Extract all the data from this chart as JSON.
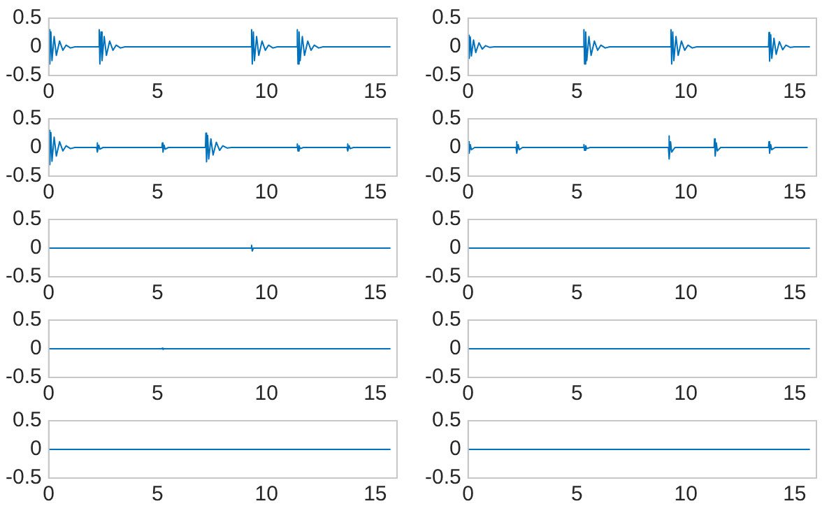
{
  "chart_data": [
    {
      "type": "line",
      "color": "#0072bd",
      "xlim": [
        0,
        16
      ],
      "xticks": [
        0,
        5,
        10,
        15
      ],
      "ylim": [
        -0.5,
        0.5
      ],
      "yticks": [
        0.5,
        0,
        -0.5
      ],
      "x": [
        0,
        0.02,
        0.05,
        0.1,
        0.15,
        0.25,
        0.35,
        0.5,
        0.65,
        0.8,
        1.0,
        1.2,
        2.3,
        2.32,
        2.35,
        2.4,
        2.45,
        2.55,
        2.65,
        2.8,
        2.95,
        3.1,
        3.3,
        3.5,
        9.3,
        9.32,
        9.35,
        9.4,
        9.45,
        9.55,
        9.65,
        9.8,
        9.95,
        10.1,
        10.3,
        10.5,
        11.4,
        11.42,
        11.45,
        11.5,
        11.55,
        11.65,
        11.75,
        11.9,
        12.05,
        12.2,
        12.4,
        12.6,
        15.7
      ],
      "values": [
        0,
        0.3,
        -0.3,
        0.26,
        -0.24,
        0.18,
        -0.15,
        0.1,
        -0.06,
        0.03,
        -0.02,
        0,
        0,
        0.3,
        -0.3,
        0.26,
        -0.24,
        0.18,
        -0.15,
        0.1,
        -0.06,
        0.03,
        -0.02,
        0,
        0,
        0.3,
        -0.3,
        0.26,
        -0.24,
        0.18,
        -0.15,
        0.1,
        -0.06,
        0.03,
        -0.02,
        0,
        0,
        0.3,
        -0.3,
        0.26,
        -0.24,
        0.18,
        -0.15,
        0.1,
        -0.06,
        0.03,
        -0.02,
        0,
        0
      ]
    },
    {
      "type": "line",
      "color": "#0072bd",
      "xlim": [
        0,
        16
      ],
      "xticks": [
        0,
        5,
        10,
        15
      ],
      "ylim": [
        -0.5,
        0.5
      ],
      "yticks": [
        0.5,
        0,
        -0.5
      ],
      "x": [
        0,
        0.02,
        0.05,
        0.1,
        0.15,
        0.25,
        0.35,
        0.5,
        0.65,
        0.8,
        1.0,
        1.2,
        5.3,
        5.32,
        5.35,
        5.4,
        5.45,
        5.55,
        5.65,
        5.8,
        5.95,
        6.1,
        6.3,
        6.5,
        9.3,
        9.32,
        9.35,
        9.4,
        9.45,
        9.55,
        9.65,
        9.8,
        9.95,
        10.1,
        10.3,
        10.5,
        13.8,
        13.82,
        13.85,
        13.9,
        13.95,
        14.05,
        14.15,
        14.3,
        14.45,
        14.6,
        14.8,
        15.0,
        15.7
      ],
      "values": [
        0,
        0.2,
        -0.2,
        0.17,
        -0.16,
        0.12,
        -0.1,
        0.07,
        -0.04,
        0.02,
        -0.01,
        0,
        0,
        0.3,
        -0.3,
        0.26,
        -0.24,
        0.18,
        -0.15,
        0.1,
        -0.06,
        0.03,
        -0.02,
        0,
        0,
        0.3,
        -0.3,
        0.26,
        -0.24,
        0.18,
        -0.15,
        0.1,
        -0.06,
        0.03,
        -0.02,
        0,
        0,
        0.25,
        -0.25,
        0.21,
        -0.2,
        0.15,
        -0.13,
        0.09,
        -0.05,
        0.03,
        -0.01,
        0,
        0
      ]
    },
    {
      "type": "line",
      "color": "#0072bd",
      "xlim": [
        0,
        16
      ],
      "xticks": [
        0,
        5,
        10,
        15
      ],
      "ylim": [
        -0.5,
        0.5
      ],
      "yticks": [
        0.5,
        0,
        -0.5
      ],
      "x": [
        0,
        0.02,
        0.05,
        0.1,
        0.15,
        0.25,
        0.35,
        0.5,
        0.65,
        0.8,
        1.0,
        1.2,
        2.2,
        2.22,
        2.25,
        2.3,
        2.35,
        2.5,
        5.2,
        5.22,
        5.25,
        5.3,
        5.35,
        5.5,
        7.2,
        7.22,
        7.25,
        7.3,
        7.35,
        7.45,
        7.55,
        7.7,
        7.85,
        8.0,
        8.2,
        8.4,
        11.4,
        11.42,
        11.45,
        11.5,
        11.55,
        11.7,
        13.7,
        13.72,
        13.75,
        13.8,
        13.85,
        14.0,
        15.7
      ],
      "values": [
        0,
        0.3,
        -0.3,
        0.26,
        -0.24,
        0.18,
        -0.15,
        0.1,
        -0.06,
        0.03,
        -0.02,
        0,
        0,
        0.08,
        -0.08,
        0.04,
        -0.03,
        0,
        0,
        0.08,
        -0.08,
        0.04,
        -0.03,
        0,
        0,
        0.25,
        -0.25,
        0.21,
        -0.2,
        0.15,
        -0.13,
        0.09,
        -0.05,
        0.03,
        -0.01,
        0,
        0,
        0.06,
        -0.06,
        0.03,
        -0.02,
        0,
        0,
        0.06,
        -0.06,
        0.03,
        -0.02,
        0,
        0
      ]
    },
    {
      "type": "line",
      "color": "#0072bd",
      "xlim": [
        0,
        16
      ],
      "xticks": [
        0,
        5,
        10,
        15
      ],
      "ylim": [
        -0.5,
        0.5
      ],
      "yticks": [
        0.5,
        0,
        -0.5
      ],
      "x": [
        0,
        0.02,
        0.05,
        0.1,
        0.15,
        0.3,
        2.2,
        2.22,
        2.25,
        2.3,
        2.35,
        2.5,
        5.3,
        5.32,
        5.35,
        5.4,
        5.45,
        5.6,
        9.2,
        9.22,
        9.25,
        9.3,
        9.35,
        9.5,
        11.3,
        11.32,
        11.35,
        11.4,
        11.45,
        11.6,
        13.8,
        13.82,
        13.85,
        13.9,
        13.95,
        14.1,
        15.6
      ],
      "values": [
        0,
        0.1,
        -0.1,
        0.05,
        -0.04,
        0,
        0,
        0.1,
        -0.1,
        0.05,
        -0.04,
        0,
        0,
        0.05,
        -0.05,
        0.03,
        -0.02,
        0,
        0,
        0.2,
        -0.2,
        0.1,
        -0.08,
        0,
        0,
        0.15,
        -0.15,
        0.08,
        -0.06,
        0,
        0,
        0.1,
        -0.1,
        0.05,
        -0.04,
        0,
        0
      ]
    },
    {
      "type": "line",
      "color": "#0072bd",
      "xlim": [
        0,
        16
      ],
      "xticks": [
        0,
        5,
        10,
        15
      ],
      "ylim": [
        -0.5,
        0.5
      ],
      "yticks": [
        0.5,
        0,
        -0.5
      ],
      "x": [
        0,
        9.3,
        9.32,
        9.35,
        9.4,
        15.7
      ],
      "values": [
        0,
        0,
        0.05,
        -0.05,
        0,
        0
      ]
    },
    {
      "type": "line",
      "color": "#0072bd",
      "xlim": [
        0,
        16
      ],
      "xticks": [
        0,
        5,
        10,
        15
      ],
      "ylim": [
        -0.5,
        0.5
      ],
      "yticks": [
        0.5,
        0,
        -0.5
      ],
      "x": [
        0,
        15.7
      ],
      "values": [
        0,
        0
      ]
    },
    {
      "type": "line",
      "color": "#0072bd",
      "xlim": [
        0,
        16
      ],
      "xticks": [
        0,
        5,
        10,
        15
      ],
      "ylim": [
        -0.5,
        0.5
      ],
      "yticks": [
        0.5,
        0,
        -0.5
      ],
      "x": [
        0,
        5.2,
        5.22,
        5.25,
        5.3,
        15.7
      ],
      "values": [
        0,
        0,
        0.01,
        -0.01,
        0,
        0
      ]
    },
    {
      "type": "line",
      "color": "#0072bd",
      "xlim": [
        0,
        16
      ],
      "xticks": [
        0,
        5,
        10,
        15
      ],
      "ylim": [
        -0.5,
        0.5
      ],
      "yticks": [
        0.5,
        0,
        -0.5
      ],
      "x": [
        0,
        15.7
      ],
      "values": [
        0,
        0
      ]
    },
    {
      "type": "line",
      "color": "#0072bd",
      "xlim": [
        0,
        16
      ],
      "xticks": [
        0,
        5,
        10,
        15
      ],
      "ylim": [
        -0.5,
        0.5
      ],
      "yticks": [
        0.5,
        0,
        -0.5
      ],
      "x": [
        0,
        15.7
      ],
      "values": [
        0,
        0
      ]
    },
    {
      "type": "line",
      "color": "#0072bd",
      "xlim": [
        0,
        16
      ],
      "xticks": [
        0,
        5,
        10,
        15
      ],
      "ylim": [
        -0.5,
        0.5
      ],
      "yticks": [
        0.5,
        0,
        -0.5
      ],
      "x": [
        0,
        15.7
      ],
      "values": [
        0,
        0
      ]
    }
  ]
}
